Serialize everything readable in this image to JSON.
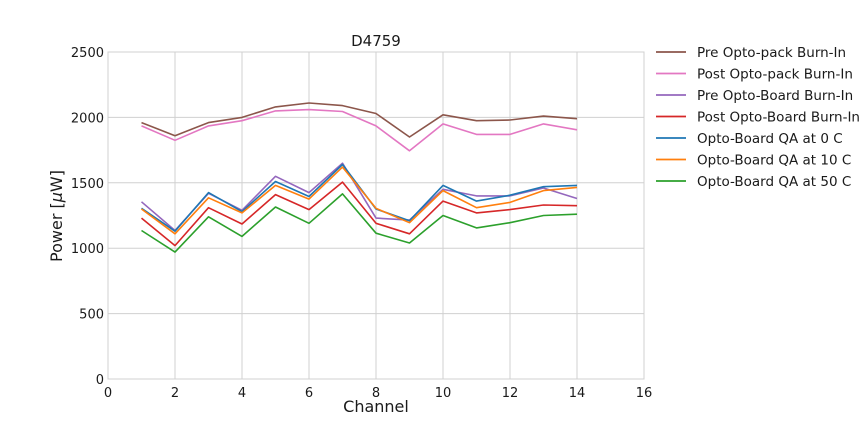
{
  "chart_data": {
    "type": "line",
    "title": "D4759",
    "xlabel": "Channel",
    "ylabel_prefix": "Power [",
    "ylabel_mu": "μ",
    "ylabel_suffix": "W]",
    "xlim": [
      0,
      16
    ],
    "ylim": [
      0,
      2500
    ],
    "xticks": [
      0,
      2,
      4,
      6,
      8,
      10,
      12,
      14,
      16
    ],
    "yticks": [
      0,
      500,
      1000,
      1500,
      2000,
      2500
    ],
    "grid": true,
    "legend_position": "outside-right",
    "x": [
      1,
      2,
      3,
      4,
      5,
      6,
      7,
      8,
      9,
      10,
      11,
      12,
      13,
      14
    ],
    "series": [
      {
        "name": "Pre Opto-pack Burn-In",
        "color": "#8c564b",
        "values": [
          1960,
          1860,
          1960,
          2000,
          2080,
          2110,
          2090,
          2030,
          1850,
          2020,
          1975,
          1980,
          2010,
          1990
        ]
      },
      {
        "name": "Post Opto-pack Burn-In",
        "color": "#e377c2",
        "values": [
          1935,
          1825,
          1935,
          1975,
          2050,
          2060,
          2045,
          1935,
          1745,
          1950,
          1870,
          1870,
          1950,
          1905
        ]
      },
      {
        "name": "Pre Opto-Board Burn-In",
        "color": "#9467bd",
        "values": [
          1355,
          1135,
          1420,
          1290,
          1550,
          1425,
          1650,
          1230,
          1215,
          1450,
          1400,
          1400,
          1460,
          1380
        ]
      },
      {
        "name": "Post Opto-Board Burn-In",
        "color": "#d62728",
        "values": [
          1230,
          1020,
          1310,
          1185,
          1410,
          1295,
          1505,
          1190,
          1110,
          1360,
          1270,
          1295,
          1330,
          1325
        ]
      },
      {
        "name": "Opto-Board QA at 0 C",
        "color": "#1f77b4",
        "values": [
          1305,
          1130,
          1425,
          1280,
          1510,
          1395,
          1640,
          1300,
          1210,
          1480,
          1360,
          1405,
          1470,
          1480
        ]
      },
      {
        "name": "Opto-Board QA at 10 C",
        "color": "#ff7f0e",
        "values": [
          1300,
          1110,
          1385,
          1270,
          1480,
          1375,
          1620,
          1305,
          1195,
          1440,
          1310,
          1350,
          1440,
          1465
        ]
      },
      {
        "name": "Opto-Board QA at 50 C",
        "color": "#2ca02c",
        "values": [
          1135,
          970,
          1240,
          1090,
          1315,
          1190,
          1415,
          1115,
          1040,
          1250,
          1155,
          1195,
          1250,
          1260
        ]
      }
    ]
  }
}
